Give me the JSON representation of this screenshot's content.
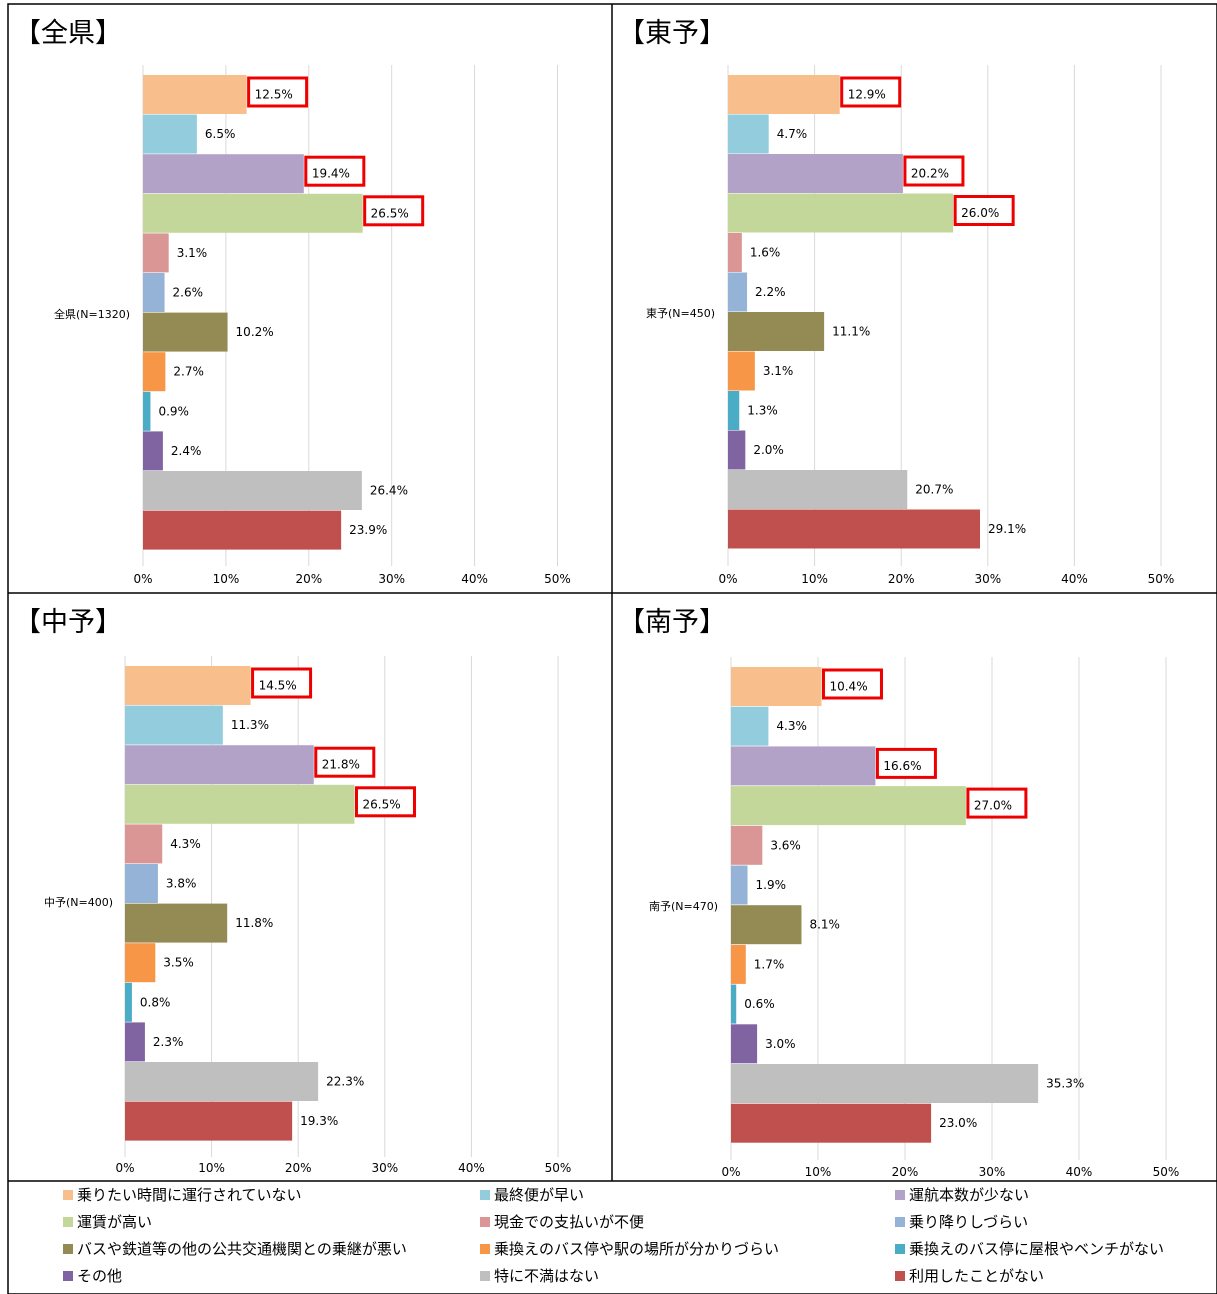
{
  "colors": [
    "#F8BF8D",
    "#93CDDD",
    "#B3A2C7",
    "#C4D79B",
    "#D99694",
    "#95B3D7",
    "#948A54",
    "#F79646",
    "#4BACC6",
    "#8064A2",
    "#BFBFBF",
    "#C0504D"
  ],
  "highlight_color": "#EE0000",
  "legend": [
    "乗りたい時間に運行されていない",
    "最終便が早い",
    "運航本数が少ない",
    "運賃が高い",
    "現金での支払いが不便",
    "乗り降りしづらい",
    "バスや鉄道等の他の公共交通機関との乗継が悪い",
    "乗換えのバス停や駅の場所が分かりづらい",
    "乗換えのバス停に屋根やベンチがない",
    "その他",
    "特に不満はない",
    "利用したことがない"
  ],
  "chart_data": [
    {
      "type": "bar",
      "title": "【全県】",
      "category": "全県(N=1320)",
      "xlim": [
        0,
        50
      ],
      "ticks": [
        "0%",
        "10%",
        "20%",
        "30%",
        "40%",
        "50%"
      ],
      "values": [
        12.5,
        6.5,
        19.4,
        26.5,
        3.1,
        2.6,
        10.2,
        2.7,
        0.9,
        2.4,
        26.4,
        23.9
      ],
      "labels": [
        "12.5%",
        "6.5%",
        "19.4%",
        "26.5%",
        "3.1%",
        "2.6%",
        "10.2%",
        "2.7%",
        "0.9%",
        "2.4%",
        "26.4%",
        "23.9%"
      ],
      "highlighted": [
        0,
        2,
        3
      ]
    },
    {
      "type": "bar",
      "title": "【東予】",
      "category": "東予(N=450)",
      "xlim": [
        0,
        50
      ],
      "ticks": [
        "0%",
        "10%",
        "20%",
        "30%",
        "40%",
        "50%"
      ],
      "values": [
        12.9,
        4.7,
        20.2,
        26.0,
        1.6,
        2.2,
        11.1,
        3.1,
        1.3,
        2.0,
        20.7,
        29.1
      ],
      "labels": [
        "12.9%",
        "4.7%",
        "20.2%",
        "26.0%",
        "1.6%",
        "2.2%",
        "11.1%",
        "3.1%",
        "1.3%",
        "2.0%",
        "20.7%",
        "29.1%"
      ],
      "highlighted": [
        0,
        2,
        3
      ]
    },
    {
      "type": "bar",
      "title": "【中予】",
      "category": "中予(N=400)",
      "xlim": [
        0,
        50
      ],
      "ticks": [
        "0%",
        "10%",
        "20%",
        "30%",
        "40%",
        "50%"
      ],
      "values": [
        14.5,
        11.3,
        21.8,
        26.5,
        4.3,
        3.8,
        11.8,
        3.5,
        0.8,
        2.3,
        22.3,
        19.3
      ],
      "labels": [
        "14.5%",
        "11.3%",
        "21.8%",
        "26.5%",
        "4.3%",
        "3.8%",
        "11.8%",
        "3.5%",
        "0.8%",
        "2.3%",
        "22.3%",
        "19.3%"
      ],
      "highlighted": [
        0,
        2,
        3
      ]
    },
    {
      "type": "bar",
      "title": "【南予】",
      "category": "南予(N=470)",
      "xlim": [
        0,
        50
      ],
      "ticks": [
        "0%",
        "10%",
        "20%",
        "30%",
        "40%",
        "50%"
      ],
      "values": [
        10.4,
        4.3,
        16.6,
        27.0,
        3.6,
        1.9,
        8.1,
        1.7,
        0.6,
        3.0,
        35.3,
        23.0
      ],
      "labels": [
        "10.4%",
        "4.3%",
        "16.6%",
        "27.0%",
        "3.6%",
        "1.9%",
        "8.1%",
        "1.7%",
        "0.6%",
        "3.0%",
        "35.3%",
        "23.0%"
      ],
      "highlighted": [
        0,
        2,
        3
      ]
    }
  ]
}
